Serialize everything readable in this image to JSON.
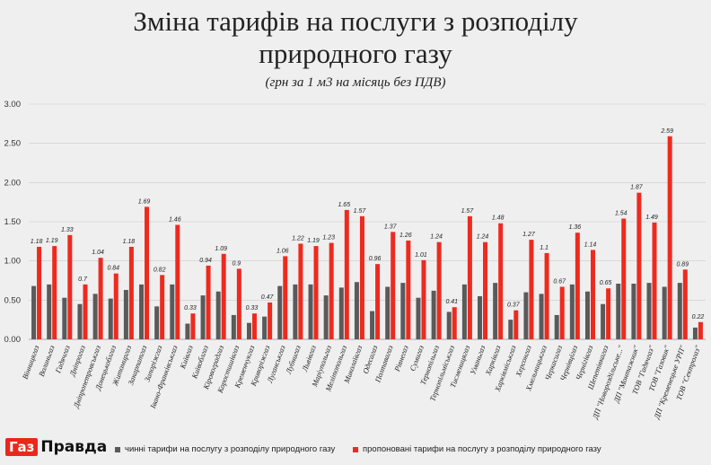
{
  "title_line1": "Зміна тарифів на послуги з розподілу",
  "title_line2": "природного газу",
  "subtitle": "(грн за 1 м3 на місяць без ПДВ)",
  "logo": {
    "box_text": "Газ",
    "rest_text": "Правда"
  },
  "colors": {
    "current": "#5a5a5a",
    "proposed": "#ee2a1f",
    "background": "#efefef",
    "grid": "#c9c9c9"
  },
  "chart_data": {
    "type": "bar",
    "ylim": [
      0,
      3
    ],
    "yticks": [
      "0.00",
      "0.50",
      "1.00",
      "1.50",
      "2.00",
      "2.50",
      "3.00"
    ],
    "categories": [
      "Вінницягаз",
      "Волиньгаз",
      "Гадячгаз",
      "Дніпрогаз",
      "Дніпропетровськгаз",
      "Донецькоблгаз",
      "Житомиргаз",
      "Закарпатгаз",
      "Запоріжгаз",
      "Івано-Франківськгаз",
      "Київгаз",
      "Київоблгаз",
      "Кіровоградгаз",
      "Коростишівгаз",
      "Кременчукгаз",
      "Криворіжгаз",
      "Луганськгаз",
      "Лубнигаз",
      "Львівгаз",
      "Маріупольгаз",
      "Мелітопольгаз",
      "Миколаївгаз",
      "Одесагаз",
      "Полтавагаз",
      "Рівнегаз",
      "Сумигаз",
      "Тернопільгаз",
      "Тернопільміськгаз",
      "Тисменицягаз",
      "Уманьгаз",
      "Харківгаз",
      "Харківміськгаз",
      "Херсонгаз",
      "Хмельницькгаз",
      "Черкасигаз",
      "Чернівцігаз",
      "Чернігівгаз",
      "Шепетівкагаз",
      "ДП \"Новороздільське...\"",
      "ДП \"Монтажник\"",
      "ТОВ \"Гадячгаз\"",
      "ТОВ \"Газовик\"",
      "ДП \"Кременецьке УРП\"",
      "ТОВ \"Сектрогаз\""
    ],
    "series": [
      {
        "name": "чинні тарифи на послугу з розподілу природного газу",
        "values": [
          0.68,
          0.7,
          0.53,
          0.45,
          0.58,
          0.52,
          0.63,
          0.7,
          0.42,
          0.7,
          0.2,
          0.56,
          0.61,
          0.31,
          0.21,
          0.29,
          0.68,
          0.7,
          0.7,
          0.56,
          0.66,
          0.73,
          0.36,
          0.67,
          0.72,
          0.53,
          0.62,
          0.35,
          0.7,
          0.55,
          0.72,
          0.25,
          0.6,
          0.58,
          0.31,
          0.7,
          0.61,
          0.45,
          0.71,
          0.71,
          0.72,
          0.67,
          0.72,
          0.15
        ]
      },
      {
        "name": "пропоновані тарифи на послугу з розподілу природного газу",
        "values": [
          1.18,
          1.19,
          1.33,
          0.7,
          1.04,
          0.84,
          1.18,
          1.69,
          0.82,
          1.46,
          0.33,
          0.94,
          1.09,
          0.9,
          0.33,
          0.47,
          1.06,
          1.22,
          1.19,
          1.23,
          1.65,
          1.57,
          0.96,
          1.37,
          1.26,
          1.01,
          1.24,
          0.41,
          1.57,
          1.24,
          1.48,
          0.37,
          1.27,
          1.1,
          0.67,
          1.36,
          1.14,
          0.65,
          1.54,
          1.87,
          1.49,
          2.59,
          0.89,
          0.22
        ],
        "labels": [
          "1.18",
          "1.19",
          "1.33",
          "0.7",
          "1.04",
          "0.84",
          "1.18",
          "1.69",
          "0.82",
          "1.46",
          "0.33",
          "0.94",
          "1.09",
          "0.9",
          "0.33",
          "0.47",
          "1.06",
          "1.22",
          "1.19",
          "1.23",
          "1.65",
          "1.57",
          "0.96",
          "1.37",
          "1.26",
          "1.01",
          "1.24",
          "0.41",
          "1.57",
          "1.24",
          "1.48",
          "0.37",
          "1.27",
          "1.1",
          "0.67",
          "1.36",
          "1.14",
          "0.65",
          "1.54",
          "1.87",
          "1.49",
          "2.59",
          "0.89",
          "0.22"
        ]
      }
    ]
  }
}
